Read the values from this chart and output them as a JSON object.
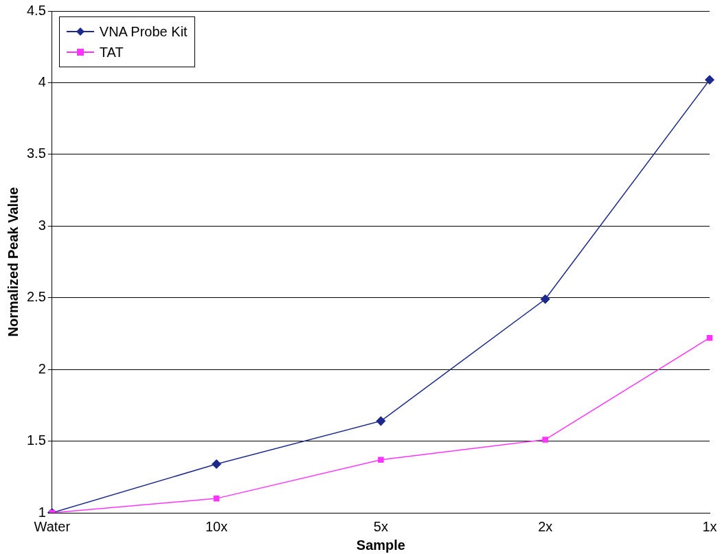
{
  "chart_data": {
    "type": "line",
    "xlabel": "Sample",
    "ylabel": "Normalized Peak Value",
    "categories": [
      "Water",
      "10x",
      "5x",
      "2x",
      "1x"
    ],
    "series": [
      {
        "name": "VNA Probe Kit",
        "color": "#1c2a8c",
        "marker": "diamond",
        "values": [
          1,
          1.34,
          1.64,
          2.49,
          4.02
        ]
      },
      {
        "name": "TAT",
        "color": "#ff33ff",
        "marker": "square",
        "values": [
          1,
          1.1,
          1.37,
          1.51,
          2.22
        ]
      }
    ],
    "ylim": [
      1,
      4.5
    ],
    "yticks": [
      1,
      1.5,
      2,
      2.5,
      3,
      3.5,
      4,
      4.5
    ],
    "grid": "y",
    "legend": "top left",
    "line_style": "solid"
  }
}
